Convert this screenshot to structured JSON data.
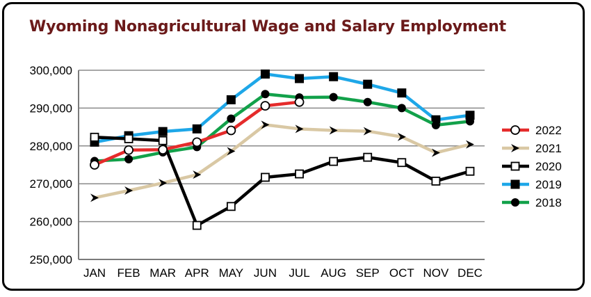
{
  "chart_data": {
    "type": "line",
    "title": "Wyoming Nonagricultural Wage and Salary Employment",
    "categories": [
      "JAN",
      "FEB",
      "MAR",
      "APR",
      "MAY",
      "JUN",
      "JUL",
      "AUG",
      "SEP",
      "OCT",
      "NOV",
      "DEC"
    ],
    "ylim": [
      250000,
      300000
    ],
    "yticks": [
      250000,
      260000,
      270000,
      280000,
      290000,
      300000
    ],
    "ytick_labels": [
      "250,000",
      "260,000",
      "270,000",
      "280,000",
      "290,000",
      "300,000"
    ],
    "grid": true,
    "legend_position": "right",
    "series": [
      {
        "name": "2019",
        "color": "#1ea7e8",
        "marker": "filled-square",
        "values": [
          281000,
          282700,
          283800,
          284500,
          292200,
          299000,
          297800,
          298300,
          296300,
          294000,
          286900,
          288100
        ]
      },
      {
        "name": "2018",
        "color": "#12a14a",
        "marker": "filled-circle",
        "values": [
          276000,
          276500,
          278300,
          279700,
          287200,
          293700,
          292800,
          292900,
          291600,
          290000,
          285500,
          286500
        ]
      },
      {
        "name": "2021",
        "color": "#d9c8a4",
        "marker": "arrowhead",
        "values": [
          266300,
          268200,
          270200,
          272400,
          278600,
          285600,
          284500,
          284100,
          283900,
          282400,
          278200,
          280400
        ]
      },
      {
        "name": "2020",
        "color": "#000000",
        "marker": "open-square",
        "values": [
          282300,
          281900,
          281400,
          259000,
          264000,
          271700,
          272600,
          275900,
          277000,
          275600,
          270700,
          273300
        ]
      },
      {
        "name": "2022",
        "color": "#e52b2b",
        "marker": "open-circle",
        "values": [
          275000,
          278900,
          279000,
          281000,
          284100,
          290600,
          291600,
          null,
          null,
          null,
          null,
          null
        ]
      }
    ],
    "legend_order": [
      "2022",
      "2021",
      "2020",
      "2019",
      "2018"
    ]
  }
}
